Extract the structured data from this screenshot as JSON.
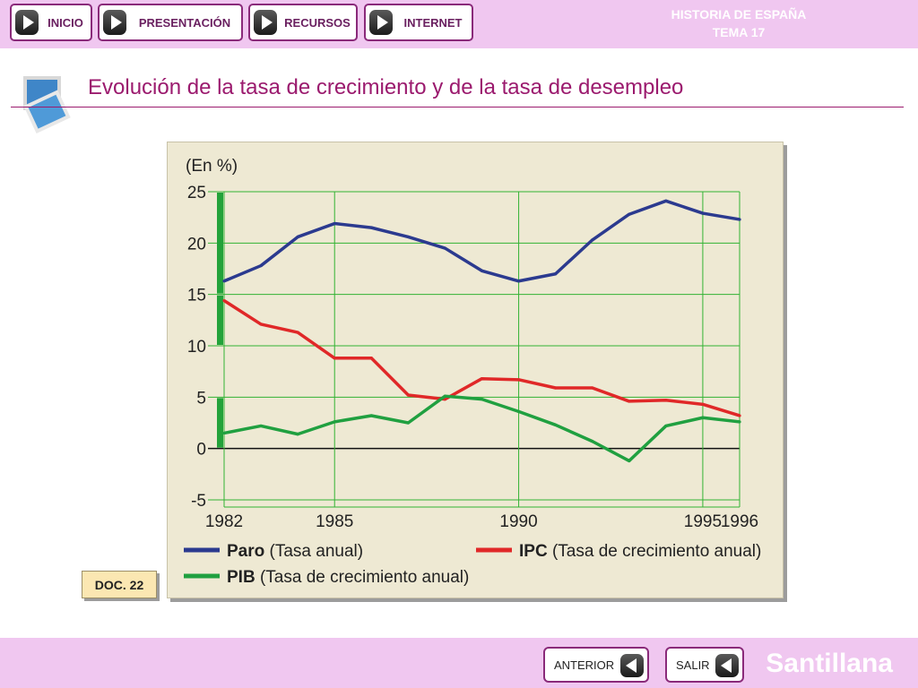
{
  "header": {
    "nav": [
      {
        "label": "INICIO"
      },
      {
        "label": "PRESENTACIÓN"
      },
      {
        "label": "RECURSOS"
      },
      {
        "label": "INTERNET"
      }
    ],
    "subject_line1": "HISTORIA DE ESPAÑA",
    "subject_line2": "TEMA 17"
  },
  "slide": {
    "title": "Evolución de la tasa de crecimiento y de la tasa de desempleo",
    "doc_label": "DOC. 22"
  },
  "footer": {
    "prev_label": "ANTERIOR",
    "exit_label": "SALIR",
    "brand": "Santillana"
  },
  "colors": {
    "bar_bg": "#f0c7f0",
    "title": "#9b1a6e",
    "paro": "#2b3a8f",
    "ipc": "#e02828",
    "pib": "#20a040",
    "grid": "#33b233",
    "chart_bg": "#eee9d3"
  },
  "icons": {
    "nav_arrow": "play-arrow-icon",
    "back_arrow": "back-arrow-icon",
    "slide": "slides-icon"
  },
  "chart_data": {
    "type": "line",
    "ylabel": "(En %)",
    "x": [
      1982,
      1983,
      1984,
      1985,
      1986,
      1987,
      1988,
      1989,
      1990,
      1991,
      1992,
      1993,
      1994,
      1995,
      1996
    ],
    "xticks": [
      "1982",
      "1985",
      "1990",
      "1995",
      "1996"
    ],
    "yticks": [
      "25",
      "20",
      "15",
      "10",
      "5",
      "0",
      "-5"
    ],
    "ylim": [
      -5,
      25
    ],
    "grid": true,
    "legend_position": "bottom",
    "series": [
      {
        "key": "paro",
        "name_bold": "Paro",
        "name_rest": " (Tasa anual)",
        "color": "#2b3a8f",
        "values": [
          16.3,
          17.8,
          20.6,
          21.9,
          21.5,
          20.6,
          19.5,
          17.3,
          16.3,
          17.0,
          20.3,
          22.8,
          24.1,
          22.9,
          22.3
        ]
      },
      {
        "key": "ipc",
        "name_bold": "IPC",
        "name_rest": " (Tasa de crecimiento anual)",
        "color": "#e02828",
        "values": [
          14.4,
          12.1,
          11.3,
          8.8,
          8.8,
          5.2,
          4.8,
          6.8,
          6.7,
          5.9,
          5.9,
          4.6,
          4.7,
          4.3,
          3.2
        ]
      },
      {
        "key": "pib",
        "name_bold": "PIB",
        "name_rest": " (Tasa de crecimiento anual)",
        "color": "#20a040",
        "values": [
          1.5,
          2.2,
          1.4,
          2.6,
          3.2,
          2.5,
          5.1,
          4.8,
          3.6,
          2.3,
          0.7,
          -1.2,
          2.2,
          3.0,
          2.6
        ]
      }
    ]
  }
}
